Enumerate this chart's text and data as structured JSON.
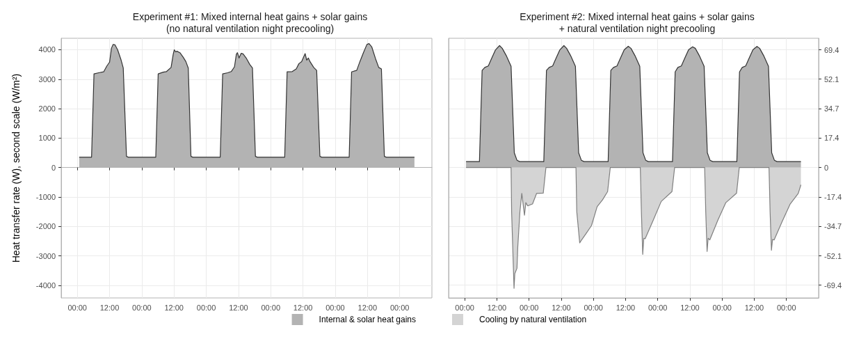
{
  "chart_data": [
    {
      "type": "area",
      "title": "Experiment #1: Mixed internal heat gains + solar gains\n(no natural ventilation night precooling)",
      "ylabel": "Heat transfer rate (W), second scale (W/m²)",
      "xlim": [
        "--01-01T18:00",
        "--01-07T12:00"
      ],
      "ylim": [
        -4430,
        4390
      ],
      "xticks": [
        {
          "value": "--01-02T00:00",
          "label": "00:00"
        },
        {
          "value": "--01-02T12:00",
          "label": "12:00"
        },
        {
          "value": "--01-03T00:00",
          "label": "00:00"
        },
        {
          "value": "--01-03T12:00",
          "label": "12:00"
        },
        {
          "value": "--01-04T00:00",
          "label": "00:00"
        },
        {
          "value": "--01-04T12:00",
          "label": "12:00"
        },
        {
          "value": "--01-05T00:00",
          "label": "00:00"
        },
        {
          "value": "--01-05T12:00",
          "label": "12:00"
        },
        {
          "value": "--01-06T00:00",
          "label": "00:00"
        },
        {
          "value": "--01-06T12:00",
          "label": "12:00"
        },
        {
          "value": "--01-07T00:00",
          "label": "00:00"
        }
      ],
      "yticks": [
        -4000,
        -3000,
        -2000,
        -1000,
        0,
        1000,
        2000,
        3000,
        4000
      ],
      "grid": true,
      "legend": "bottom right",
      "series": [
        {
          "name": "Internal & solar heat gains",
          "color": "#b3b3b3",
          "x": [
            "--01-02T00:42",
            "--01-02T05:18",
            "--01-02T06:12",
            "--01-02T08:00",
            "--01-02T09:48",
            "--01-02T11:00",
            "--01-02T12:00",
            "--01-02T12:42",
            "--01-02T13:18",
            "--01-02T14:00",
            "--01-02T15:00",
            "--01-02T16:18",
            "--01-02T17:06",
            "--01-02T18:18",
            "--01-02T19:00",
            "--01-03T05:12",
            "--01-03T06:06",
            "--01-03T08:00",
            "--01-03T09:12",
            "--01-03T10:54",
            "--01-03T11:42",
            "--01-03T12:06",
            "--01-03T12:36",
            "--01-03T13:06",
            "--01-03T14:12",
            "--01-03T15:24",
            "--01-03T16:24",
            "--01-03T17:18",
            "--01-03T18:18",
            "--01-03T19:00",
            "--01-04T05:12",
            "--01-04T06:06",
            "--01-04T08:00",
            "--01-04T09:18",
            "--01-04T10:30",
            "--01-04T11:12",
            "--01-04T11:36",
            "--01-04T12:12",
            "--01-04T13:00",
            "--01-04T13:42",
            "--01-04T15:00",
            "--01-04T16:12",
            "--01-04T17:12",
            "--01-04T18:18",
            "--01-04T19:00",
            "--01-05T05:12",
            "--01-05T06:06",
            "--01-05T08:00",
            "--01-05T09:30",
            "--01-05T10:30",
            "--01-05T11:30",
            "--01-05T12:48",
            "--01-05T13:24",
            "--01-05T14:00",
            "--01-05T14:36",
            "--01-05T16:00",
            "--01-05T17:06",
            "--01-05T18:18",
            "--01-05T19:00",
            "--01-06T05:12",
            "--01-06T06:06",
            "--01-06T08:00",
            "--01-06T09:12",
            "--01-06T10:30",
            "--01-06T11:48",
            "--01-06T12:36",
            "--01-06T13:36",
            "--01-06T15:00",
            "--01-06T16:12",
            "--01-06T17:12",
            "--01-06T18:18",
            "--01-06T19:00",
            "--01-07T05:30"
          ],
          "values": [
            350,
            350,
            3180,
            3220,
            3250,
            3450,
            3580,
            4050,
            4180,
            4170,
            4000,
            3650,
            3380,
            380,
            350,
            350,
            3180,
            3240,
            3260,
            3400,
            3850,
            4000,
            3930,
            3950,
            3900,
            3750,
            3600,
            3380,
            380,
            350,
            350,
            3180,
            3220,
            3260,
            3420,
            3850,
            3900,
            3720,
            3880,
            3860,
            3700,
            3500,
            3380,
            380,
            350,
            350,
            3250,
            3260,
            3350,
            3530,
            3600,
            3870,
            3650,
            3720,
            3600,
            3400,
            3300,
            380,
            350,
            350,
            3250,
            3300,
            3600,
            3900,
            4180,
            4210,
            4100,
            3700,
            3400,
            3350,
            380,
            350,
            350
          ]
        }
      ]
    },
    {
      "type": "area",
      "title": "Experiment #2: Mixed internal heat gains + solar gains\n+ natural ventilation night precooling",
      "xlim": [
        "--01-01T18:00",
        "--01-07T12:00"
      ],
      "y2lim": [
        -76.9,
        76.2
      ],
      "xticks": [
        {
          "value": "--01-02T00:00",
          "label": "00:00"
        },
        {
          "value": "--01-02T12:00",
          "label": "12:00"
        },
        {
          "value": "--01-03T00:00",
          "label": "00:00"
        },
        {
          "value": "--01-03T12:00",
          "label": "12:00"
        },
        {
          "value": "--01-04T00:00",
          "label": "00:00"
        },
        {
          "value": "--01-04T12:00",
          "label": "12:00"
        },
        {
          "value": "--01-05T00:00",
          "label": "00:00"
        },
        {
          "value": "--01-05T12:00",
          "label": "12:00"
        },
        {
          "value": "--01-06T00:00",
          "label": "00:00"
        },
        {
          "value": "--01-06T12:00",
          "label": "12:00"
        },
        {
          "value": "--01-07T00:00",
          "label": "00:00"
        }
      ],
      "y2ticks": [
        -69.4,
        -52.1,
        -34.7,
        -17.4,
        0,
        17.4,
        34.7,
        52.1,
        69.4
      ],
      "grid": true,
      "legend": "bottom left",
      "series": [
        {
          "color": "#b3b3b3",
          "axis": "y2",
          "x": [
            "--01-02T00:30",
            "--01-02T05:30",
            "--01-02T06:30",
            "--01-02T07:30",
            "--01-02T08:48",
            "--01-02T10:00",
            "--01-02T11:30",
            "--01-02T13:00",
            "--01-02T14:00",
            "--01-02T15:30",
            "--01-02T17:18",
            "--01-02T18:30",
            "--01-02T19:30",
            "--01-02T20:30",
            "--01-03T05:30",
            "--01-03T06:30",
            "--01-03T07:30",
            "--01-03T08:48",
            "--01-03T10:00",
            "--01-03T11:30",
            "--01-03T13:00",
            "--01-03T14:00",
            "--01-03T15:30",
            "--01-03T17:18",
            "--01-03T18:30",
            "--01-03T19:30",
            "--01-03T20:30",
            "--01-04T05:30",
            "--01-04T06:30",
            "--01-04T07:30",
            "--01-04T08:48",
            "--01-04T10:00",
            "--01-04T11:30",
            "--01-04T13:00",
            "--01-04T14:00",
            "--01-04T15:30",
            "--01-04T17:18",
            "--01-04T18:30",
            "--01-04T19:30",
            "--01-04T20:30",
            "--01-05T05:30",
            "--01-05T06:30",
            "--01-05T07:30",
            "--01-05T08:48",
            "--01-05T10:00",
            "--01-05T11:30",
            "--01-05T13:00",
            "--01-05T14:00",
            "--01-05T15:30",
            "--01-05T17:18",
            "--01-05T18:30",
            "--01-05T19:30",
            "--01-05T20:30",
            "--01-06T05:30",
            "--01-06T06:30",
            "--01-06T07:30",
            "--01-06T08:48",
            "--01-06T10:00",
            "--01-06T11:30",
            "--01-06T13:00",
            "--01-06T14:00",
            "--01-06T15:30",
            "--01-06T17:18",
            "--01-06T18:30",
            "--01-06T19:30",
            "--01-06T20:30",
            "--01-07T05:24"
          ],
          "values": [
            3.5,
            3.5,
            57.3,
            59.0,
            59.9,
            64.2,
            69.4,
            71.9,
            70.3,
            66.0,
            59.7,
            8.7,
            4.3,
            3.5,
            3.5,
            57.3,
            59.0,
            59.9,
            64.2,
            69.4,
            71.9,
            70.3,
            66.0,
            59.7,
            8.7,
            4.3,
            3.5,
            3.5,
            57.3,
            59.0,
            59.9,
            64.2,
            69.4,
            71.5,
            70.3,
            66.0,
            59.7,
            8.7,
            4.3,
            3.5,
            3.5,
            56.4,
            59.0,
            59.9,
            64.2,
            69.4,
            71.2,
            70.3,
            66.0,
            59.7,
            8.7,
            4.3,
            3.5,
            3.5,
            56.4,
            59.0,
            59.9,
            64.2,
            69.4,
            71.4,
            70.3,
            66.0,
            59.7,
            8.7,
            4.3,
            3.5,
            3.5
          ]
        },
        {
          "name": "Cooling by natural ventilation",
          "color": "#d4d4d4",
          "axis": "y2",
          "x": [
            "--01-02T00:30",
            "--01-02T17:18",
            "--01-02T17:30",
            "--01-02T18:24",
            "--01-02T18:42",
            "--01-02T19:30",
            "--01-02T19:48",
            "--01-02T20:36",
            "--01-02T21:18",
            "--01-02T22:18",
            "--01-02T22:48",
            "--01-02T23:30",
            "--01-03T01:18",
            "--01-03T02:48",
            "--01-03T05:18",
            "--01-03T06:18",
            "--01-03T17:30",
            "--01-03T17:48",
            "--01-03T18:54",
            "--01-03T19:18",
            "--01-03T21:18",
            "--01-03T23:18",
            "--01-04T01:24",
            "--01-04T03:24",
            "--01-04T05:18",
            "--01-04T06:18",
            "--01-04T17:30",
            "--01-04T17:54",
            "--01-04T18:24",
            "--01-04T18:48",
            "--01-04T19:18",
            "--01-04T22:18",
            "--01-05T01:18",
            "--01-05T05:18",
            "--01-05T06:18",
            "--01-05T17:30",
            "--01-05T17:54",
            "--01-05T18:24",
            "--01-05T18:48",
            "--01-05T19:24",
            "--01-05T22:24",
            "--01-06T01:24",
            "--01-06T05:24",
            "--01-06T06:24",
            "--01-06T17:30",
            "--01-06T17:54",
            "--01-06T18:24",
            "--01-06T18:48",
            "--01-06T19:24",
            "--01-06T22:24",
            "--01-07T01:24",
            "--01-07T04:24",
            "--01-07T05:24"
          ],
          "values": [
            0,
            0,
            -26.0,
            -71.2,
            -62.5,
            -59.4,
            -46.9,
            -26.0,
            -15.3,
            -28.1,
            -20.7,
            -22.6,
            -21.5,
            -15.3,
            -15.1,
            0,
            0,
            -26.0,
            -44.4,
            -43.4,
            -38.9,
            -34.2,
            -23.1,
            -19.1,
            -14.2,
            0,
            0,
            -26.0,
            -51.2,
            -41.7,
            -42.0,
            -31.1,
            -20.0,
            -14.2,
            0,
            0,
            -26.0,
            -49.5,
            -41.7,
            -42.7,
            -31.1,
            -20.7,
            -15.1,
            0,
            0,
            -26.0,
            -48.8,
            -42.5,
            -42.7,
            -31.9,
            -21.5,
            -15.3,
            -10.2
          ]
        }
      ]
    }
  ]
}
